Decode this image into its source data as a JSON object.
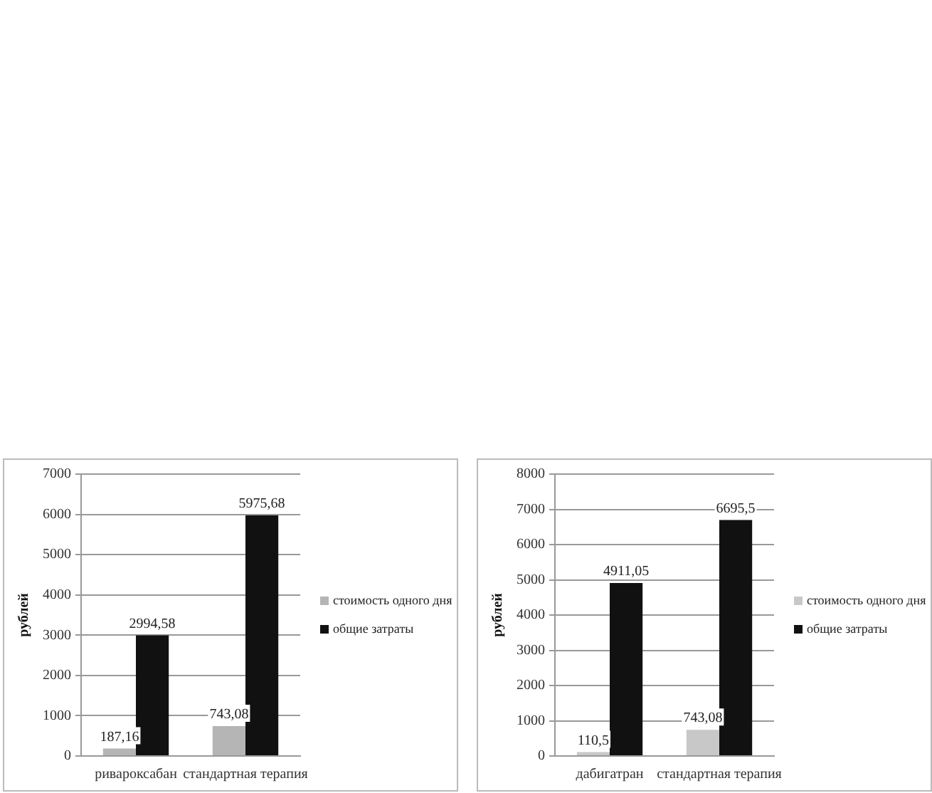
{
  "chart_data": [
    {
      "type": "bar",
      "ylabel": "рублей",
      "categories": [
        "ривароксабан",
        "стандартная терапия"
      ],
      "series": [
        {
          "name": "стоимость одного дня",
          "color": "#b5b5b5",
          "values": [
            187.16,
            743.08
          ],
          "value_labels": [
            "187,16",
            "743,08"
          ]
        },
        {
          "name": "общие затраты",
          "color": "#111111",
          "values": [
            2994.58,
            5975.68
          ],
          "value_labels": [
            "2994,58",
            "5975,68"
          ]
        }
      ],
      "ylim": [
        0,
        7000
      ],
      "yticks": [
        0,
        1000,
        2000,
        3000,
        4000,
        5000,
        6000,
        7000
      ],
      "grid": "y",
      "legend": "right"
    },
    {
      "type": "bar",
      "ylabel": "рублей",
      "categories": [
        "дабигатран",
        "стандартная терапия"
      ],
      "series": [
        {
          "name": "стоимость одного дня",
          "color": "#c8c8c8",
          "values": [
            110.5,
            743.08
          ],
          "value_labels": [
            "110,5",
            "743,08"
          ]
        },
        {
          "name": "общие затраты",
          "color": "#111111",
          "values": [
            4911.05,
            6695.5
          ],
          "value_labels": [
            "4911,05",
            "6695,5"
          ]
        }
      ],
      "ylim": [
        0,
        8000
      ],
      "yticks": [
        0,
        1000,
        2000,
        3000,
        4000,
        5000,
        6000,
        7000,
        8000
      ],
      "grid": "y",
      "legend": "right"
    }
  ]
}
